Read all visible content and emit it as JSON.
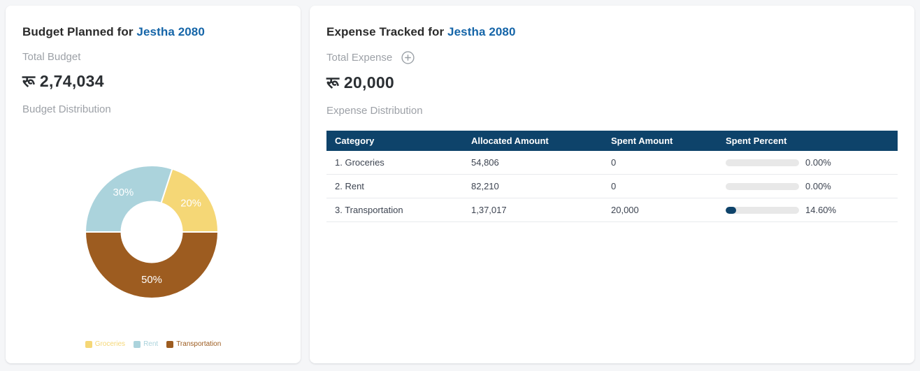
{
  "budget_card": {
    "title_prefix": "Budget Planned for ",
    "title_period": "Jestha 2080",
    "total_label": "Total Budget",
    "total_amount": "रू 2,74,034",
    "distribution_label": "Budget Distribution"
  },
  "expense_card": {
    "title_prefix": "Expense Tracked for ",
    "title_period": "Jestha 2080",
    "total_label": "Total Expense",
    "total_amount": "रू 20,000",
    "distribution_label": "Expense Distribution",
    "add_button_icon": "plus-circle-icon"
  },
  "table": {
    "columns": [
      "Category",
      "Allocated Amount",
      "Spent Amount",
      "Spent Percent"
    ],
    "rows": [
      {
        "category": "1. Groceries",
        "allocated": "54,806",
        "spent": "0",
        "spent_percent": 0,
        "spent_percent_label": "0.00%"
      },
      {
        "category": "2. Rent",
        "allocated": "82,210",
        "spent": "0",
        "spent_percent": 0,
        "spent_percent_label": "0.00%"
      },
      {
        "category": "3. Transportation",
        "allocated": "1,37,017",
        "spent": "20,000",
        "spent_percent": 14.6,
        "spent_percent_label": "14.60%"
      }
    ]
  },
  "chart_data": {
    "type": "pie",
    "subtype": "donut",
    "title": "Budget Distribution",
    "categories": [
      "Groceries",
      "Rent",
      "Transportation"
    ],
    "values": [
      20,
      30,
      50
    ],
    "slice_labels": [
      "20%",
      "30%",
      "50%"
    ],
    "colors": [
      "#f5d776",
      "#abd3dc",
      "#9d5c20"
    ],
    "start_angle_deg_ccw_from_east": 0,
    "direction": "counterclockwise",
    "legend_position": "bottom"
  },
  "colors": {
    "accent_blue": "#1565a8",
    "table_header_bg": "#0e436a",
    "progress_fill": "#0e436a",
    "progress_track": "#e8e8e8"
  }
}
